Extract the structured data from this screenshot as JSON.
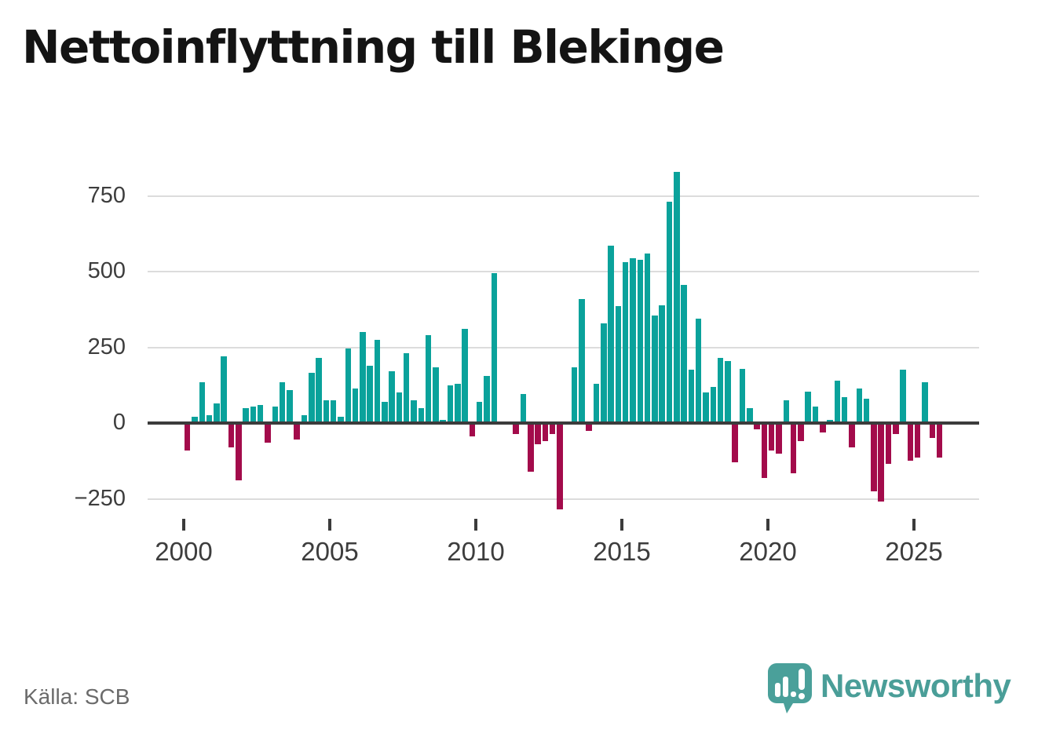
{
  "title": "Nettoinflyttning till Blekinge",
  "source": "Källa: SCB",
  "branding": {
    "logo_text": "Newsworthy"
  },
  "chart_data": {
    "type": "bar",
    "title": "Nettoinflyttning till Blekinge",
    "x_start_year": 2000,
    "frequency": "quarterly",
    "values": [
      -90,
      20,
      135,
      25,
      65,
      220,
      -80,
      -190,
      50,
      55,
      60,
      -65,
      55,
      135,
      110,
      -55,
      25,
      165,
      215,
      75,
      75,
      20,
      245,
      115,
      300,
      190,
      275,
      70,
      170,
      100,
      230,
      75,
      50,
      290,
      185,
      10,
      125,
      130,
      310,
      -45,
      70,
      155,
      495,
      0,
      0,
      -35,
      95,
      -160,
      -70,
      -60,
      -35,
      -285,
      0,
      185,
      410,
      -25,
      130,
      330,
      585,
      385,
      530,
      545,
      540,
      560,
      355,
      390,
      730,
      830,
      455,
      175,
      345,
      100,
      120,
      215,
      205,
      -130,
      180,
      50,
      -20,
      -180,
      -90,
      -100,
      75,
      -165,
      -60,
      105,
      55,
      -30,
      10,
      140,
      85,
      -80,
      115,
      80,
      -225,
      -260,
      -135,
      -35,
      175,
      -125,
      -115,
      135,
      -50,
      -115
    ],
    "x_tick_years": [
      2000,
      2005,
      2010,
      2015,
      2020,
      2025
    ],
    "x_tick_labels": [
      "2000",
      "2005",
      "2010",
      "2015",
      "2020",
      "2025"
    ],
    "y_ticks": [
      750,
      500,
      250,
      0,
      -250
    ],
    "y_tick_labels": [
      "750",
      "500",
      "250",
      "0",
      "−250"
    ],
    "ylim": [
      -300,
      850
    ],
    "grid": true,
    "legend": false,
    "colors": {
      "positive": "#0aa29b",
      "negative": "#a30b4b",
      "axis": "#3b3b3b",
      "grid": "#dcdcdc"
    }
  }
}
